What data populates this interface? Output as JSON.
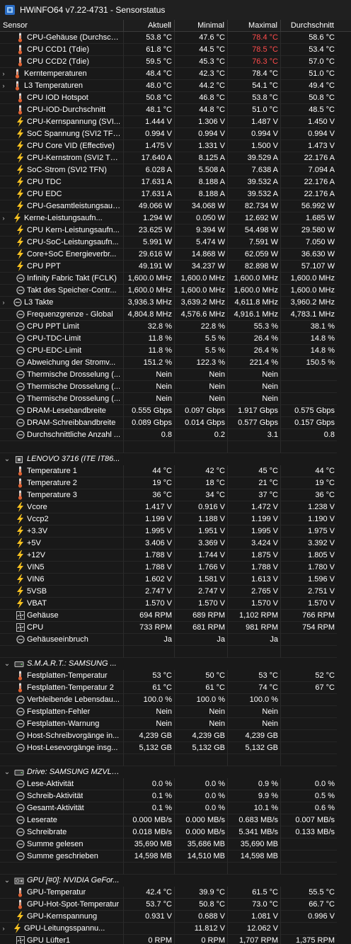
{
  "window": {
    "title": "HWiNFO64 v7.22-4731 - Sensorstatus"
  },
  "columns": [
    "Sensor",
    "Aktuell",
    "Minimal",
    "Maximal",
    "Durchschnitt"
  ],
  "colors": {
    "background": "#191919",
    "alert": "#ff4c4c",
    "temp_icon": "#e06030",
    "bolt_icon": "#f5c020",
    "clock_icon": "#bfbfbf"
  },
  "rows": [
    {
      "t": "s",
      "icon": "thermometer-icon",
      "level": 0,
      "name": "CPU-Gehäuse (Durchsch...",
      "cur": "53.8 °C",
      "min": "47.6 °C",
      "max": "78.4 °C",
      "avg": "58.6 °C",
      "max_alert": true
    },
    {
      "t": "s",
      "icon": "thermometer-icon",
      "level": 0,
      "name": "CPU CCD1 (Tdie)",
      "cur": "61.8 °C",
      "min": "44.5 °C",
      "max": "78.5 °C",
      "avg": "53.4 °C",
      "max_alert": true
    },
    {
      "t": "s",
      "icon": "thermometer-icon",
      "level": 0,
      "name": "CPU CCD2 (Tdie)",
      "cur": "59.5 °C",
      "min": "45.3 °C",
      "max": "76.3 °C",
      "avg": "57.0 °C",
      "max_alert": true
    },
    {
      "t": "s",
      "icon": "thermometer-icon",
      "level": 1,
      "name": "Kerntemperaturen",
      "cur": "48.4 °C",
      "min": "42.3 °C",
      "max": "78.4 °C",
      "avg": "51.0 °C"
    },
    {
      "t": "s",
      "icon": "thermometer-icon",
      "level": 1,
      "name": "L3 Temperaturen",
      "cur": "48.0 °C",
      "min": "44.2 °C",
      "max": "54.1 °C",
      "avg": "49.4 °C"
    },
    {
      "t": "s",
      "icon": "thermometer-icon",
      "level": 0,
      "name": "CPU IOD Hotspot",
      "cur": "50.8 °C",
      "min": "46.8 °C",
      "max": "53.8 °C",
      "avg": "50.8 °C"
    },
    {
      "t": "s",
      "icon": "thermometer-icon",
      "level": 0,
      "name": "CPU-IOD-Durchschnitt",
      "cur": "48.1 °C",
      "min": "44.8 °C",
      "max": "51.0 °C",
      "avg": "48.5 °C"
    },
    {
      "t": "s",
      "icon": "lightning-icon",
      "level": 0,
      "name": "CPU-Kernspannung (SVI...",
      "cur": "1.444 V",
      "min": "1.306 V",
      "max": "1.487 V",
      "avg": "1.450 V"
    },
    {
      "t": "s",
      "icon": "lightning-icon",
      "level": 0,
      "name": "SoC Spannung (SVI2 TFN)",
      "cur": "0.994 V",
      "min": "0.994 V",
      "max": "0.994 V",
      "avg": "0.994 V"
    },
    {
      "t": "s",
      "icon": "lightning-icon",
      "level": 0,
      "name": "CPU Core VID (Effective)",
      "cur": "1.475 V",
      "min": "1.331 V",
      "max": "1.500 V",
      "avg": "1.473 V"
    },
    {
      "t": "s",
      "icon": "lightning-icon",
      "level": 0,
      "name": "CPU-Kernstrom (SVI2 TFN)",
      "cur": "17.640 A",
      "min": "8.125 A",
      "max": "39.529 A",
      "avg": "22.176 A"
    },
    {
      "t": "s",
      "icon": "lightning-icon",
      "level": 0,
      "name": "SoC-Strom (SVI2 TFN)",
      "cur": "6.028 A",
      "min": "5.508 A",
      "max": "7.638 A",
      "avg": "7.094 A"
    },
    {
      "t": "s",
      "icon": "lightning-icon",
      "level": 0,
      "name": "CPU TDC",
      "cur": "17.631 A",
      "min": "8.188 A",
      "max": "39.532 A",
      "avg": "22.176 A"
    },
    {
      "t": "s",
      "icon": "lightning-icon",
      "level": 0,
      "name": "CPU EDC",
      "cur": "17.631 A",
      "min": "8.188 A",
      "max": "39.532 A",
      "avg": "22.176 A"
    },
    {
      "t": "s",
      "icon": "lightning-icon",
      "level": 0,
      "name": "CPU-Gesamtleistungsauf...",
      "cur": "49.066 W",
      "min": "34.068 W",
      "max": "82.734 W",
      "avg": "56.992 W"
    },
    {
      "t": "s",
      "icon": "lightning-icon",
      "level": 1,
      "name": "Kerne-Leistungsaufn...",
      "cur": "1.294 W",
      "min": "0.050 W",
      "max": "12.692 W",
      "avg": "1.685 W"
    },
    {
      "t": "s",
      "icon": "lightning-icon",
      "level": 0,
      "name": "CPU Kern-Leistungsaufn...",
      "cur": "23.625 W",
      "min": "9.394 W",
      "max": "54.498 W",
      "avg": "29.580 W"
    },
    {
      "t": "s",
      "icon": "lightning-icon",
      "level": 0,
      "name": "CPU-SoC-Leistungsaufn...",
      "cur": "5.991 W",
      "min": "5.474 W",
      "max": "7.591 W",
      "avg": "7.050 W"
    },
    {
      "t": "s",
      "icon": "lightning-icon",
      "level": 0,
      "name": "Core+SoC Energieverbr...",
      "cur": "29.616 W",
      "min": "14.868 W",
      "max": "62.059 W",
      "avg": "36.630 W"
    },
    {
      "t": "s",
      "icon": "lightning-icon",
      "level": 0,
      "name": "CPU PPT",
      "cur": "49.191 W",
      "min": "34.237 W",
      "max": "82.898 W",
      "avg": "57.107 W"
    },
    {
      "t": "s",
      "icon": "clock-icon",
      "level": 0,
      "name": "Infinity Fabric Takt (FCLK)",
      "cur": "1,600.0 MHz",
      "min": "1,600.0 MHz",
      "max": "1,600.0 MHz",
      "avg": "1,600.0 MHz"
    },
    {
      "t": "s",
      "icon": "clock-icon",
      "level": 0,
      "name": "Takt des Speicher-Contr...",
      "cur": "1,600.0 MHz",
      "min": "1,600.0 MHz",
      "max": "1,600.0 MHz",
      "avg": "1,600.0 MHz"
    },
    {
      "t": "s",
      "icon": "clock-icon",
      "level": 1,
      "name": "L3 Takte",
      "cur": "3,936.3 MHz",
      "min": "3,639.2 MHz",
      "max": "4,611.8 MHz",
      "avg": "3,960.2 MHz"
    },
    {
      "t": "s",
      "icon": "clock-icon",
      "level": 0,
      "name": "Frequenzgrenze - Global",
      "cur": "4,804.8 MHz",
      "min": "4,576.6 MHz",
      "max": "4,916.1 MHz",
      "avg": "4,783.1 MHz"
    },
    {
      "t": "s",
      "icon": "clock-icon",
      "level": 0,
      "name": "CPU PPT Limit",
      "cur": "32.8 %",
      "min": "22.8 %",
      "max": "55.3 %",
      "avg": "38.1 %"
    },
    {
      "t": "s",
      "icon": "clock-icon",
      "level": 0,
      "name": "CPU-TDC-Limit",
      "cur": "11.8 %",
      "min": "5.5 %",
      "max": "26.4 %",
      "avg": "14.8 %"
    },
    {
      "t": "s",
      "icon": "clock-icon",
      "level": 0,
      "name": "CPU-EDC-Limit",
      "cur": "11.8 %",
      "min": "5.5 %",
      "max": "26.4 %",
      "avg": "14.8 %"
    },
    {
      "t": "s",
      "icon": "clock-icon",
      "level": 0,
      "name": "Abweichung der Stromv...",
      "cur": "151.2 %",
      "min": "122.3 %",
      "max": "221.4 %",
      "avg": "150.5 %"
    },
    {
      "t": "s",
      "icon": "clock-icon",
      "level": 0,
      "name": "Thermische Drosselung (...",
      "cur": "Nein",
      "min": "Nein",
      "max": "Nein",
      "avg": ""
    },
    {
      "t": "s",
      "icon": "clock-icon",
      "level": 0,
      "name": "Thermische Drosselung (...",
      "cur": "Nein",
      "min": "Nein",
      "max": "Nein",
      "avg": ""
    },
    {
      "t": "s",
      "icon": "clock-icon",
      "level": 0,
      "name": "Thermische Drosselung (...",
      "cur": "Nein",
      "min": "Nein",
      "max": "Nein",
      "avg": ""
    },
    {
      "t": "s",
      "icon": "clock-icon",
      "level": 0,
      "name": "DRAM-Lesebandbreite",
      "cur": "0.555 Gbps",
      "min": "0.097 Gbps",
      "max": "1.917 Gbps",
      "avg": "0.575 Gbps"
    },
    {
      "t": "s",
      "icon": "clock-icon",
      "level": 0,
      "name": "DRAM-Schreibbandbreite",
      "cur": "0.089 Gbps",
      "min": "0.014 Gbps",
      "max": "0.577 Gbps",
      "avg": "0.157 Gbps"
    },
    {
      "t": "s",
      "icon": "clock-icon",
      "level": 0,
      "name": "Durchschnittliche Anzahl ...",
      "cur": "0.8",
      "min": "0.2",
      "max": "3.1",
      "avg": "0.8"
    },
    {
      "t": "b"
    },
    {
      "t": "g",
      "icon": "chip-icon",
      "name": "LENOVO 3716 (ITE IT86..."
    },
    {
      "t": "s",
      "icon": "thermometer-icon",
      "level": 0,
      "name": "Temperature 1",
      "cur": "44 °C",
      "min": "42 °C",
      "max": "45 °C",
      "avg": "44 °C"
    },
    {
      "t": "s",
      "icon": "thermometer-icon",
      "level": 0,
      "name": "Temperature 2",
      "cur": "19 °C",
      "min": "18 °C",
      "max": "21 °C",
      "avg": "19 °C"
    },
    {
      "t": "s",
      "icon": "thermometer-icon",
      "level": 0,
      "name": "Temperature 3",
      "cur": "36 °C",
      "min": "34 °C",
      "max": "37 °C",
      "avg": "36 °C"
    },
    {
      "t": "s",
      "icon": "lightning-icon",
      "level": 0,
      "name": "Vcore",
      "cur": "1.417 V",
      "min": "0.916 V",
      "max": "1.472 V",
      "avg": "1.238 V"
    },
    {
      "t": "s",
      "icon": "lightning-icon",
      "level": 0,
      "name": "Vccp2",
      "cur": "1.199 V",
      "min": "1.188 V",
      "max": "1.199 V",
      "avg": "1.190 V"
    },
    {
      "t": "s",
      "icon": "lightning-icon",
      "level": 0,
      "name": "+3.3V",
      "cur": "1.995 V",
      "min": "1.951 V",
      "max": "1.995 V",
      "avg": "1.975 V"
    },
    {
      "t": "s",
      "icon": "lightning-icon",
      "level": 0,
      "name": "+5V",
      "cur": "3.406 V",
      "min": "3.369 V",
      "max": "3.424 V",
      "avg": "3.392 V"
    },
    {
      "t": "s",
      "icon": "lightning-icon",
      "level": 0,
      "name": "+12V",
      "cur": "1.788 V",
      "min": "1.744 V",
      "max": "1.875 V",
      "avg": "1.805 V"
    },
    {
      "t": "s",
      "icon": "lightning-icon",
      "level": 0,
      "name": "VIN5",
      "cur": "1.788 V",
      "min": "1.766 V",
      "max": "1.788 V",
      "avg": "1.780 V"
    },
    {
      "t": "s",
      "icon": "lightning-icon",
      "level": 0,
      "name": "VIN6",
      "cur": "1.602 V",
      "min": "1.581 V",
      "max": "1.613 V",
      "avg": "1.596 V"
    },
    {
      "t": "s",
      "icon": "lightning-icon",
      "level": 0,
      "name": "5VSB",
      "cur": "2.747 V",
      "min": "2.747 V",
      "max": "2.765 V",
      "avg": "2.751 V"
    },
    {
      "t": "s",
      "icon": "lightning-icon",
      "level": 0,
      "name": "VBAT",
      "cur": "1.570 V",
      "min": "1.570 V",
      "max": "1.570 V",
      "avg": "1.570 V"
    },
    {
      "t": "s",
      "icon": "fan-icon",
      "level": 0,
      "name": "Gehäuse",
      "cur": "694 RPM",
      "min": "689 RPM",
      "max": "1,102 RPM",
      "avg": "766 RPM"
    },
    {
      "t": "s",
      "icon": "fan-icon",
      "level": 0,
      "name": "CPU",
      "cur": "733 RPM",
      "min": "681 RPM",
      "max": "981 RPM",
      "avg": "754 RPM"
    },
    {
      "t": "s",
      "icon": "clock-icon",
      "level": 0,
      "name": "Gehäuseeinbruch",
      "cur": "Ja",
      "min": "Ja",
      "max": "Ja",
      "avg": ""
    },
    {
      "t": "b"
    },
    {
      "t": "g",
      "icon": "drive-icon",
      "name": "S.M.A.R.T.: SAMSUNG ..."
    },
    {
      "t": "s",
      "icon": "thermometer-icon",
      "level": 0,
      "name": "Festplatten-Temperatur",
      "cur": "53 °C",
      "min": "50 °C",
      "max": "53 °C",
      "avg": "52 °C"
    },
    {
      "t": "s",
      "icon": "thermometer-icon",
      "level": 0,
      "name": "Festplatten-Temperatur 2",
      "cur": "61 °C",
      "min": "61 °C",
      "max": "74 °C",
      "avg": "67 °C"
    },
    {
      "t": "s",
      "icon": "clock-icon",
      "level": 0,
      "name": "Verbleibende Lebensdau...",
      "cur": "100.0 %",
      "min": "100.0 %",
      "max": "100.0 %",
      "avg": ""
    },
    {
      "t": "s",
      "icon": "clock-icon",
      "level": 0,
      "name": "Festplatten-Fehler",
      "cur": "Nein",
      "min": "Nein",
      "max": "Nein",
      "avg": ""
    },
    {
      "t": "s",
      "icon": "clock-icon",
      "level": 0,
      "name": "Festplatten-Warnung",
      "cur": "Nein",
      "min": "Nein",
      "max": "Nein",
      "avg": ""
    },
    {
      "t": "s",
      "icon": "clock-icon",
      "level": 0,
      "name": "Host-Schreibvorgänge in...",
      "cur": "4,239 GB",
      "min": "4,239 GB",
      "max": "4,239 GB",
      "avg": ""
    },
    {
      "t": "s",
      "icon": "clock-icon",
      "level": 0,
      "name": "Host-Lesevorgänge insg...",
      "cur": "5,132 GB",
      "min": "5,132 GB",
      "max": "5,132 GB",
      "avg": ""
    },
    {
      "t": "b"
    },
    {
      "t": "g",
      "icon": "drive-icon",
      "name": "Drive: SAMSUNG MZVLB..."
    },
    {
      "t": "s",
      "icon": "clock-icon",
      "level": 0,
      "name": "Lese-Aktivität",
      "cur": "0.0 %",
      "min": "0.0 %",
      "max": "0.9 %",
      "avg": "0.0 %"
    },
    {
      "t": "s",
      "icon": "clock-icon",
      "level": 0,
      "name": "Schreib-Aktivität",
      "cur": "0.1 %",
      "min": "0.0 %",
      "max": "9.9 %",
      "avg": "0.5 %"
    },
    {
      "t": "s",
      "icon": "clock-icon",
      "level": 0,
      "name": "Gesamt-Aktivität",
      "cur": "0.1 %",
      "min": "0.0 %",
      "max": "10.1 %",
      "avg": "0.6 %"
    },
    {
      "t": "s",
      "icon": "clock-icon",
      "level": 0,
      "name": "Leserate",
      "cur": "0.000 MB/s",
      "min": "0.000 MB/s",
      "max": "0.683 MB/s",
      "avg": "0.007 MB/s"
    },
    {
      "t": "s",
      "icon": "clock-icon",
      "level": 0,
      "name": "Schreibrate",
      "cur": "0.018 MB/s",
      "min": "0.000 MB/s",
      "max": "5.341 MB/s",
      "avg": "0.133 MB/s"
    },
    {
      "t": "s",
      "icon": "clock-icon",
      "level": 0,
      "name": "Summe gelesen",
      "cur": "35,690 MB",
      "min": "35,686 MB",
      "max": "35,690 MB",
      "avg": ""
    },
    {
      "t": "s",
      "icon": "clock-icon",
      "level": 0,
      "name": "Summe geschrieben",
      "cur": "14,598 MB",
      "min": "14,510 MB",
      "max": "14,598 MB",
      "avg": ""
    },
    {
      "t": "b"
    },
    {
      "t": "g",
      "icon": "gpu-icon",
      "name": "GPU [#0]: NVIDIA GeFor..."
    },
    {
      "t": "s",
      "icon": "thermometer-icon",
      "level": 0,
      "name": "GPU-Temperatur",
      "cur": "42.4 °C",
      "min": "39.9 °C",
      "max": "61.5 °C",
      "avg": "55.5 °C"
    },
    {
      "t": "s",
      "icon": "thermometer-icon",
      "level": 0,
      "name": "GPU-Hot-Spot-Temperatur",
      "cur": "53.7 °C",
      "min": "50.8 °C",
      "max": "73.0 °C",
      "avg": "66.7 °C"
    },
    {
      "t": "s",
      "icon": "lightning-icon",
      "level": 0,
      "name": "GPU-Kernspannung",
      "cur": "0.931 V",
      "min": "0.688 V",
      "max": "1.081 V",
      "avg": "0.996 V"
    },
    {
      "t": "s",
      "icon": "lightning-icon",
      "level": 1,
      "name": "GPU-Leitungsspannu...",
      "cur": "",
      "min": "11.812 V",
      "max": "12.062 V",
      "avg": ""
    },
    {
      "t": "s",
      "icon": "fan-icon",
      "level": 0,
      "name": "GPU Lüfter1",
      "cur": "0 RPM",
      "min": "0 RPM",
      "max": "1,707 RPM",
      "avg": "1,375 RPM"
    }
  ]
}
